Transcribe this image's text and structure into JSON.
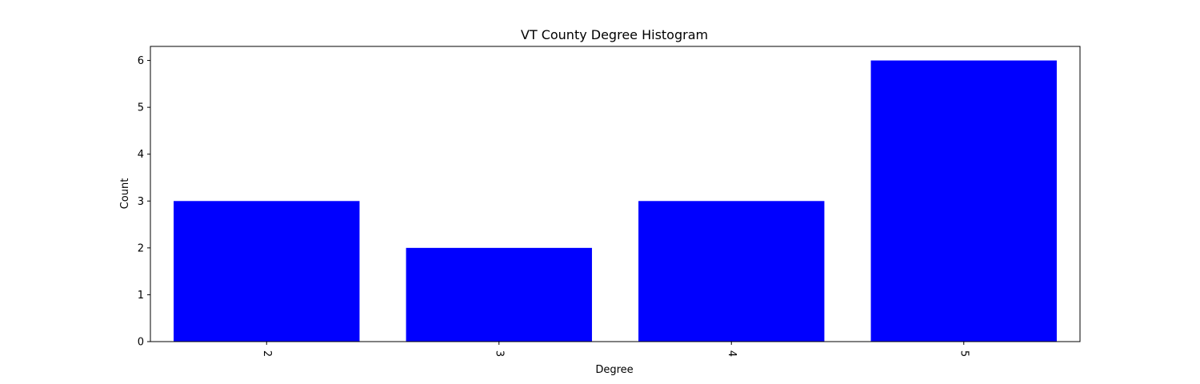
{
  "chart_data": {
    "type": "bar",
    "title": "VT County Degree Histogram",
    "xlabel": "Degree",
    "ylabel": "Count",
    "categories": [
      "2",
      "3",
      "4",
      "5"
    ],
    "values": [
      3,
      2,
      3,
      6
    ],
    "ylim": [
      0,
      6.3
    ],
    "yticks": [
      0,
      1,
      2,
      3,
      4,
      5,
      6
    ],
    "x_tick_rotation": "vertical (-90 deg)",
    "grid": false,
    "legend": "none",
    "bar_color": "#0000ff",
    "axis_color": "#000000"
  }
}
